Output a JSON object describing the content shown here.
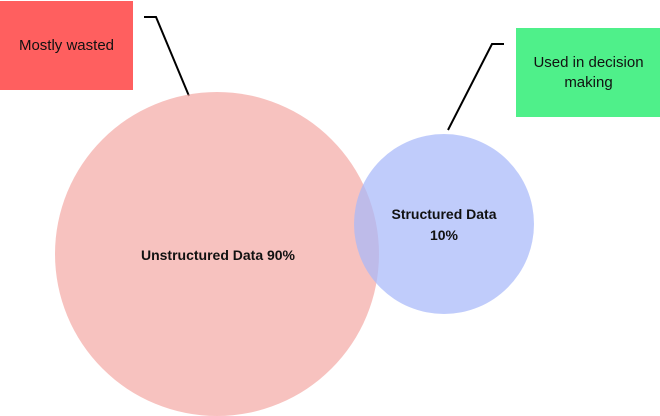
{
  "colors": {
    "unstructured_circle": "#f4aaa6",
    "structured_circle": "#a7b9f9",
    "wasted_box": "#ff5f5f",
    "decision_box": "#4ff08a",
    "leader_line": "#000000"
  },
  "circles": {
    "unstructured": {
      "label": "Unstructured Data 90%"
    },
    "structured": {
      "label": "Structured Data 10%"
    }
  },
  "callouts": {
    "wasted": {
      "text": "Mostly wasted"
    },
    "decision": {
      "text": "Used in decision making"
    }
  }
}
